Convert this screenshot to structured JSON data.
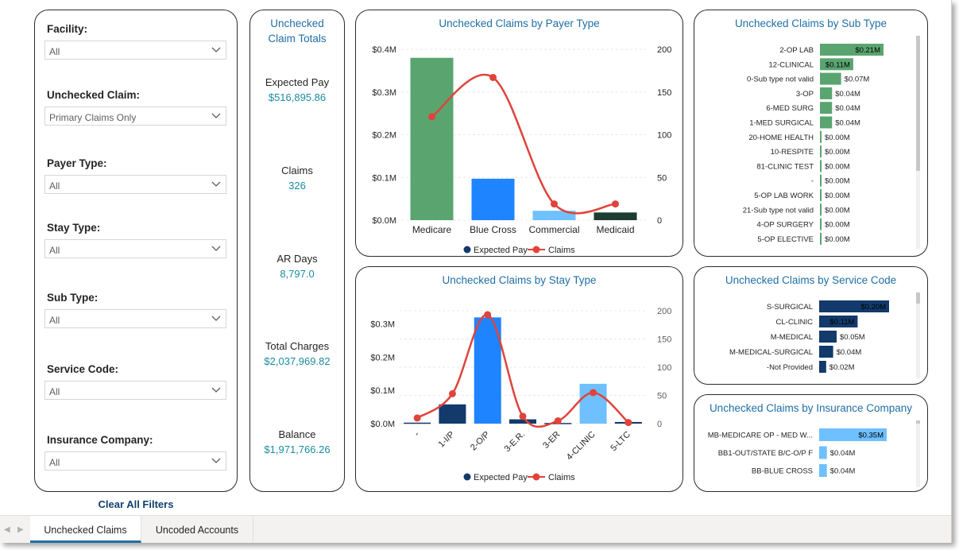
{
  "filters": {
    "facility": {
      "label": "Facility:",
      "value": "All"
    },
    "unchecked_claim": {
      "label": "Unchecked Claim:",
      "value": "Primary Claims Only"
    },
    "payer_type": {
      "label": "Payer Type:",
      "value": "All"
    },
    "stay_type": {
      "label": "Stay Type:",
      "value": "All"
    },
    "sub_type": {
      "label": "Sub Type:",
      "value": "All"
    },
    "service_code": {
      "label": "Service Code:",
      "value": "All"
    },
    "insurance_company": {
      "label": "Insurance Company:",
      "value": "All"
    },
    "clear_label": "Clear All Filters"
  },
  "kpis": {
    "header": [
      "Unchecked",
      "Claim Totals"
    ],
    "items": [
      {
        "title": "Expected Pay",
        "value": "$516,895.86"
      },
      {
        "title": "Claims",
        "value": "326"
      },
      {
        "title": "AR Days",
        "value": "8,797.0"
      },
      {
        "title": "Total Charges",
        "value": "$2,037,969.82"
      },
      {
        "title": "Balance",
        "value": "$1,971,766.26"
      }
    ]
  },
  "colors": {
    "green": "#5aa56f",
    "blue": "#1f84ff",
    "lightblue": "#6fc0ff",
    "navy": "#123a6b",
    "darkgreen": "#1d3d33",
    "line": "#e0433a",
    "title": "#1f6fa6",
    "kpi": "#1a8ca0"
  },
  "chart_data": [
    {
      "id": "payer",
      "type": "bar",
      "title": "Unchecked Claims by Payer Type",
      "categories": [
        "Medicare",
        "Blue Cross",
        "Commercial",
        "Medicaid"
      ],
      "series": [
        {
          "name": "Expected Pay",
          "values": [
            0.38,
            0.097,
            0.022,
            0.018
          ],
          "axis": "left",
          "colors": [
            "#5aa56f",
            "#1f84ff",
            "#6fc0ff",
            "#1d3d33"
          ]
        },
        {
          "name": "Claims",
          "values": [
            121,
            167,
            19,
            19
          ],
          "axis": "right",
          "type": "line"
        }
      ],
      "y_left": {
        "ticks": [
          "$0.0M",
          "$0.1M",
          "$0.2M",
          "$0.3M",
          "$0.4M"
        ],
        "range": [
          0,
          0.4
        ]
      },
      "y_right": {
        "ticks": [
          "0",
          "50",
          "100",
          "150",
          "200"
        ],
        "range": [
          0,
          200
        ]
      },
      "legend": [
        "Expected Pay",
        "Claims"
      ]
    },
    {
      "id": "stay",
      "type": "bar",
      "title": "Unchecked Claims by Stay Type",
      "categories": [
        "-",
        "1-I/P",
        "2-O/P",
        "3-E.R.",
        "3-ER",
        "4-CLINIC",
        "5-LTC"
      ],
      "series": [
        {
          "name": "Expected Pay",
          "values": [
            0.003,
            0.058,
            0.32,
            0.013,
            0.002,
            0.12,
            0.005
          ],
          "axis": "left",
          "colors": [
            "#123a6b",
            "#123a6b",
            "#1f84ff",
            "#123a6b",
            "#123a6b",
            "#6fc0ff",
            "#123a6b"
          ]
        },
        {
          "name": "Claims",
          "values": [
            10,
            53,
            193,
            13,
            5,
            55,
            2
          ],
          "axis": "right",
          "type": "line"
        }
      ],
      "y_left": {
        "ticks": [
          "$0.0M",
          "$0.1M",
          "$0.2M",
          "$0.3M"
        ],
        "range": [
          0,
          0.34
        ]
      },
      "y_right": {
        "ticks": [
          "0",
          "50",
          "100",
          "150",
          "200"
        ],
        "range": [
          0,
          200
        ]
      },
      "legend": [
        "Expected Pay",
        "Claims"
      ]
    },
    {
      "id": "subtype",
      "type": "bar",
      "orientation": "horizontal",
      "title": "Unchecked Claims by Sub Type",
      "categories": [
        "2-OP LAB",
        "12-CLINICAL",
        "0-Sub type not valid",
        "3-OP",
        "6-MED SURG",
        "1-MED SURGICAL",
        "20-HOME HEALTH",
        "10-RESPITE",
        "81-CLINIC TEST",
        "-",
        "5-OP LAB WORK",
        "21-Sub type not valid",
        "4-OP SURGERY",
        "5-OP ELECTIVE"
      ],
      "values": [
        0.21,
        0.11,
        0.07,
        0.04,
        0.04,
        0.04,
        0.004,
        0.003,
        0.002,
        0.001,
        0.001,
        0.001,
        0.001,
        0.001
      ],
      "labels": [
        "$0.21M",
        "$0.11M",
        "$0.07M",
        "$0.04M",
        "$0.04M",
        "$0.04M",
        "$0.00M",
        "$0.00M",
        "$0.00M",
        "$0.00M",
        "$0.00M",
        "$0.00M",
        "$0.00M",
        "$0.00M"
      ],
      "color": "#5aa56f"
    },
    {
      "id": "service",
      "type": "bar",
      "orientation": "horizontal",
      "title": "Unchecked Claims by Service Code",
      "categories": [
        "S-SURGICAL",
        "CL-CLINIC",
        "M-MEDICAL",
        "M-MEDICAL-SURGICAL",
        "-Not Provided"
      ],
      "values": [
        0.2,
        0.11,
        0.05,
        0.04,
        0.02
      ],
      "labels": [
        "$0.20M",
        "$0.11M",
        "$0.05M",
        "$0.04M",
        "$0.02M"
      ],
      "color": "#123a6b"
    },
    {
      "id": "insurance",
      "type": "bar",
      "orientation": "horizontal",
      "title": "Unchecked Claims by Insurance Company",
      "categories": [
        "MB-MEDICARE OP - MED W...",
        "BB1-OUT/STATE B/C-O/P F",
        "BB-BLUE CROSS"
      ],
      "values": [
        0.35,
        0.04,
        0.04
      ],
      "labels": [
        "$0.35M",
        "$0.04M",
        "$0.04M"
      ],
      "color": "#6fc0ff"
    }
  ],
  "tabs": [
    {
      "label": "Unchecked Claims",
      "active": true
    },
    {
      "label": "Uncoded Accounts",
      "active": false
    }
  ]
}
